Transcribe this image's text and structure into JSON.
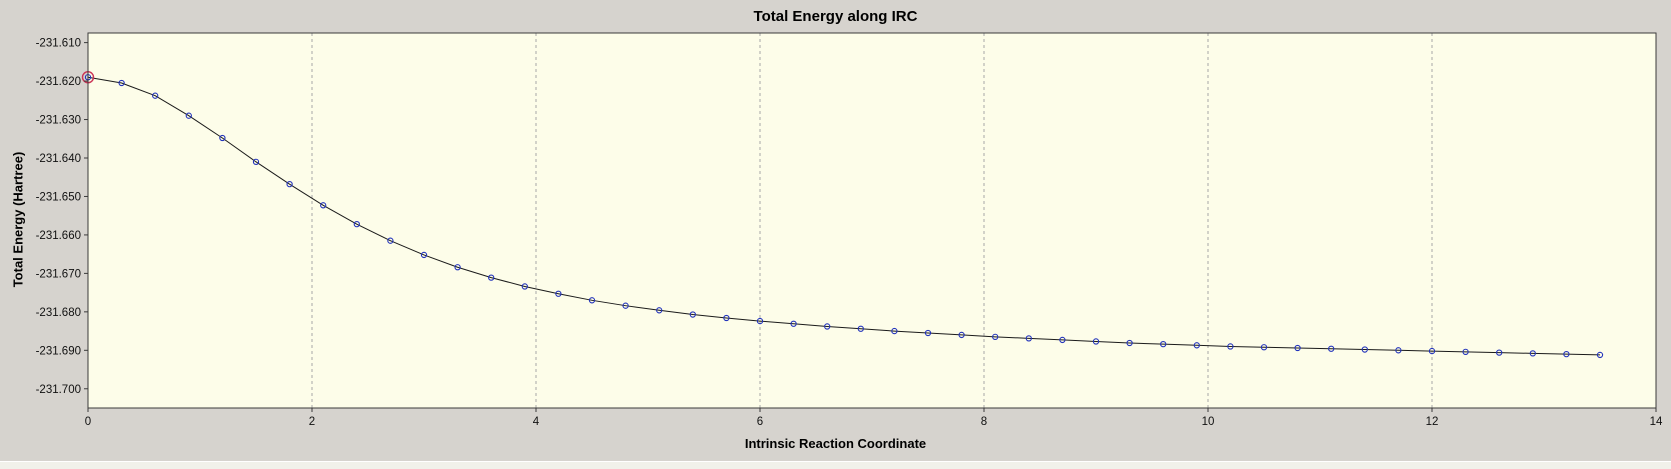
{
  "window": {
    "background": "#d6d3ce"
  },
  "chart_data": {
    "type": "line",
    "title": "Total Energy along IRC",
    "xlabel": "Intrinsic Reaction Coordinate",
    "ylabel": "Total Energy (Hartree)",
    "xlim": [
      0,
      14
    ],
    "ylim": [
      -231.705,
      -231.6075
    ],
    "x_ticks": [
      0,
      2,
      4,
      6,
      8,
      10,
      12,
      14
    ],
    "y_ticks": [
      -231.61,
      -231.62,
      -231.63,
      -231.64,
      -231.65,
      -231.66,
      -231.67,
      -231.68,
      -231.69,
      -231.7
    ],
    "y_tick_decimals": 3,
    "grid": "vertical-dashed",
    "legend": "none",
    "colors": {
      "line": "#1a1a1a",
      "marker": "#2233bb",
      "highlight": "#cc3355",
      "plot_bg": "#fdfde9",
      "grid": "#a8a8a8",
      "axis": "#3a3a3a",
      "tick_text": "#111111"
    },
    "series": [
      {
        "name": "Total Energy",
        "x": [
          0,
          0.3,
          0.6,
          0.9,
          1.2,
          1.5,
          1.8,
          2.1,
          2.4,
          2.7,
          3.0,
          3.3,
          3.6,
          3.9,
          4.2,
          4.5,
          4.8,
          5.1,
          5.4,
          5.7,
          6.0,
          6.3,
          6.6,
          6.9,
          7.2,
          7.5,
          7.8,
          8.1,
          8.4,
          8.7,
          9.0,
          9.3,
          9.6,
          9.9,
          10.2,
          10.5,
          10.8,
          11.1,
          11.4,
          11.7,
          12.0,
          12.3,
          12.6,
          12.9,
          13.2,
          13.5
        ],
        "y": [
          -231.619,
          -231.6205,
          -231.6238,
          -231.629,
          -231.6348,
          -231.641,
          -231.6468,
          -231.6523,
          -231.6572,
          -231.6615,
          -231.6652,
          -231.6684,
          -231.6711,
          -231.6734,
          -231.6753,
          -231.677,
          -231.6784,
          -231.6796,
          -231.6807,
          -231.6816,
          -231.6824,
          -231.6831,
          -231.6838,
          -231.6844,
          -231.685,
          -231.6855,
          -231.686,
          -231.6865,
          -231.6869,
          -231.6873,
          -231.6877,
          -231.6881,
          -231.6884,
          -231.6887,
          -231.689,
          -231.6892,
          -231.6894,
          -231.6896,
          -231.6898,
          -231.69,
          -231.6902,
          -231.6904,
          -231.6906,
          -231.6908,
          -231.691,
          -231.6912
        ]
      }
    ],
    "highlight_point": {
      "x": 0,
      "y": -231.619
    }
  }
}
